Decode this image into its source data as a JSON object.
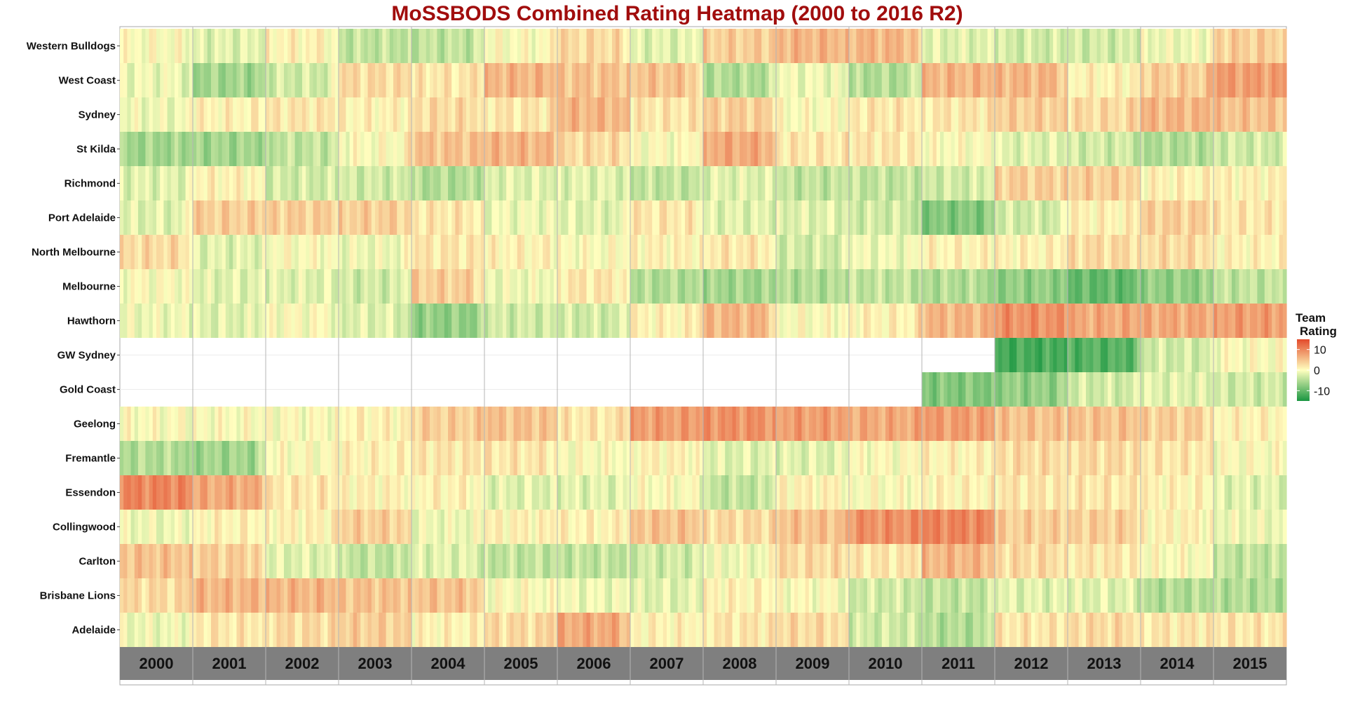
{
  "chart_data": {
    "type": "heatmap",
    "title": "MoSSBODS Combined Rating Heatmap (2000 to 2016 R2)",
    "legend": {
      "title_lines": [
        "Team",
        "Rating"
      ],
      "ticks": [
        10,
        0,
        -10
      ],
      "range": [
        -15,
        15
      ],
      "colors": {
        "low": "#1a9641",
        "mid": "#ffffbf",
        "high": "#e34a2b"
      },
      "placement": "right"
    },
    "years": [
      "2000",
      "2001",
      "2002",
      "2003",
      "2004",
      "2005",
      "2006",
      "2007",
      "2008",
      "2009",
      "2010",
      "2011",
      "2012",
      "2013",
      "2014",
      "2015"
    ],
    "teams": [
      "Western Bulldogs",
      "West Coast",
      "Sydney",
      "St Kilda",
      "Richmond",
      "Port Adelaide",
      "North Melbourne",
      "Melbourne",
      "Hawthorn",
      "GW Sydney",
      "Gold Coast",
      "Geelong",
      "Fremantle",
      "Essendon",
      "Collingwood",
      "Carlton",
      "Brisbane Lions",
      "Adelaide"
    ],
    "team_first_year": {
      "GW Sydney": "2012",
      "Gold Coast": "2011"
    },
    "season_ratings": {
      "Western Bulldogs": [
        0,
        -2,
        1,
        -4,
        -4,
        0,
        3,
        -2,
        4,
        6,
        6,
        -2,
        -3,
        -3,
        -1,
        4
      ],
      "West Coast": [
        -1,
        -6,
        -3,
        3,
        2,
        6,
        5,
        5,
        -5,
        -1,
        -5,
        6,
        6,
        1,
        4,
        8
      ],
      "Sydney": [
        -1,
        1,
        2,
        1,
        3,
        2,
        6,
        2,
        4,
        0,
        2,
        2,
        4,
        3,
        6,
        5
      ],
      "St Kilda": [
        -6,
        -6,
        -4,
        0,
        5,
        6,
        3,
        0,
        7,
        2,
        2,
        0,
        -2,
        -3,
        -5,
        -3
      ],
      "Richmond": [
        -2,
        1,
        -3,
        -3,
        -5,
        -2,
        -2,
        -4,
        -2,
        -4,
        -4,
        -3,
        4,
        4,
        1,
        1
      ],
      "Port Adelaide": [
        -2,
        4,
        4,
        4,
        2,
        -1,
        -2,
        2,
        -2,
        -2,
        -3,
        -8,
        -3,
        1,
        4,
        2
      ],
      "North Melbourne": [
        3,
        -2,
        0,
        -1,
        2,
        1,
        0,
        1,
        2,
        -3,
        -1,
        1,
        1,
        3,
        3,
        1
      ],
      "Melbourne": [
        0,
        -2,
        -2,
        -3,
        4,
        -1,
        2,
        -5,
        -6,
        -5,
        -4,
        -5,
        -7,
        -10,
        -7,
        -4
      ],
      "Hawthorn": [
        -1,
        -2,
        0,
        -2,
        -7,
        -3,
        -3,
        1,
        6,
        0,
        1,
        6,
        9,
        7,
        7,
        8
      ],
      "GW Sydney": [
        null,
        null,
        null,
        null,
        null,
        null,
        null,
        null,
        null,
        null,
        null,
        null,
        -12,
        -11,
        -3,
        0
      ],
      "Gold Coast": [
        null,
        null,
        null,
        null,
        null,
        null,
        null,
        null,
        null,
        null,
        null,
        -8,
        -7,
        -3,
        -2,
        -3
      ],
      "Geelong": [
        0,
        0,
        0,
        1,
        4,
        5,
        2,
        8,
        9,
        8,
        7,
        8,
        5,
        5,
        4,
        1
      ],
      "Fremantle": [
        -5,
        -6,
        0,
        1,
        2,
        2,
        0,
        1,
        -2,
        -2,
        0,
        1,
        3,
        3,
        2,
        0
      ],
      "Essendon": [
        10,
        7,
        2,
        1,
        1,
        -2,
        -2,
        0,
        -4,
        1,
        0,
        1,
        2,
        2,
        1,
        -2
      ],
      "Collingwood": [
        -1,
        1,
        1,
        4,
        -1,
        1,
        1,
        5,
        3,
        5,
        9,
        10,
        4,
        4,
        1,
        -1
      ],
      "Carlton": [
        5,
        4,
        -2,
        -4,
        -2,
        -4,
        -4,
        -3,
        -1,
        3,
        2,
        6,
        3,
        2,
        0,
        -4
      ],
      "Brisbane Lions": [
        3,
        6,
        6,
        5,
        5,
        0,
        -1,
        -2,
        1,
        0,
        -3,
        -4,
        -2,
        -2,
        -5,
        -5
      ],
      "Adelaide": [
        -1,
        2,
        3,
        4,
        1,
        3,
        7,
        1,
        2,
        3,
        -3,
        -5,
        2,
        3,
        2,
        2
      ]
    }
  }
}
